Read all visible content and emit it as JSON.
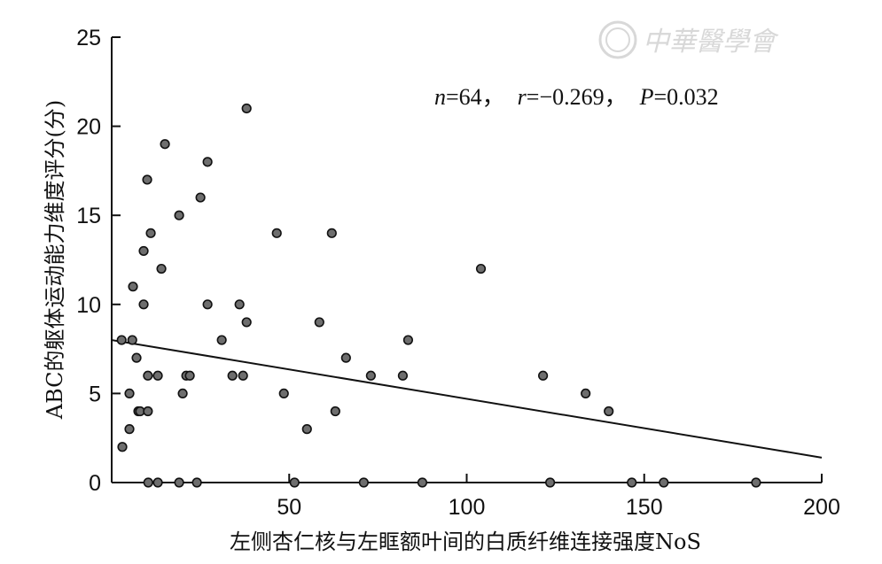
{
  "chart_data": {
    "type": "scatter",
    "xlabel": "左侧杏仁核与左眶额叶间的白质纤维连接强度NoS",
    "ylabel": "ABC的躯体运动能力维度评分(分)",
    "annotation": {
      "n_label": "n",
      "n_value": "=64，",
      "r_label": "r",
      "r_value": "=−0.269，",
      "p_label": "P",
      "p_value": "=0.032"
    },
    "xlim": [
      0,
      200
    ],
    "ylim": [
      0,
      25
    ],
    "x_ticks": [
      50,
      100,
      150,
      200
    ],
    "y_ticks": [
      0,
      5,
      10,
      15,
      20,
      25
    ],
    "x_tick_labels": [
      "50",
      "100",
      "150",
      "200"
    ],
    "y_tick_labels": [
      "0",
      "5",
      "10",
      "15",
      "20",
      "25"
    ],
    "regression_line": {
      "x": [
        0,
        200
      ],
      "y": [
        8.0,
        1.4
      ]
    },
    "points": [
      {
        "x": 2.8,
        "y": 8
      },
      {
        "x": 3.0,
        "y": 2
      },
      {
        "x": 5.0,
        "y": 5
      },
      {
        "x": 5.0,
        "y": 3
      },
      {
        "x": 5.8,
        "y": 8
      },
      {
        "x": 6.0,
        "y": 11
      },
      {
        "x": 7.0,
        "y": 7
      },
      {
        "x": 7.5,
        "y": 4
      },
      {
        "x": 8.0,
        "y": 4
      },
      {
        "x": 9.0,
        "y": 13
      },
      {
        "x": 9.0,
        "y": 10
      },
      {
        "x": 10.0,
        "y": 17
      },
      {
        "x": 10.2,
        "y": 6
      },
      {
        "x": 10.2,
        "y": 4
      },
      {
        "x": 11.0,
        "y": 14
      },
      {
        "x": 10.3,
        "y": 0
      },
      {
        "x": 13.0,
        "y": 6
      },
      {
        "x": 13.0,
        "y": 0
      },
      {
        "x": 14.0,
        "y": 12
      },
      {
        "x": 15.0,
        "y": 19
      },
      {
        "x": 19.0,
        "y": 15
      },
      {
        "x": 19.0,
        "y": 0
      },
      {
        "x": 20.0,
        "y": 5
      },
      {
        "x": 21.0,
        "y": 6
      },
      {
        "x": 22.0,
        "y": 6
      },
      {
        "x": 24.0,
        "y": 0
      },
      {
        "x": 25.0,
        "y": 16
      },
      {
        "x": 27.0,
        "y": 18
      },
      {
        "x": 27.0,
        "y": 10
      },
      {
        "x": 31.0,
        "y": 8
      },
      {
        "x": 34.0,
        "y": 6
      },
      {
        "x": 36.0,
        "y": 10
      },
      {
        "x": 37.0,
        "y": 6
      },
      {
        "x": 38.0,
        "y": 9
      },
      {
        "x": 38.0,
        "y": 21
      },
      {
        "x": 46.5,
        "y": 14
      },
      {
        "x": 48.5,
        "y": 5
      },
      {
        "x": 51.5,
        "y": 0
      },
      {
        "x": 55.0,
        "y": 3
      },
      {
        "x": 58.5,
        "y": 9
      },
      {
        "x": 62.0,
        "y": 14
      },
      {
        "x": 63.0,
        "y": 4
      },
      {
        "x": 66.0,
        "y": 7
      },
      {
        "x": 71.0,
        "y": 0
      },
      {
        "x": 73.0,
        "y": 6
      },
      {
        "x": 82.0,
        "y": 6
      },
      {
        "x": 83.5,
        "y": 8
      },
      {
        "x": 87.5,
        "y": 0
      },
      {
        "x": 104.0,
        "y": 12
      },
      {
        "x": 121.5,
        "y": 6
      },
      {
        "x": 123.5,
        "y": 0
      },
      {
        "x": 133.5,
        "y": 5
      },
      {
        "x": 140.0,
        "y": 4
      },
      {
        "x": 146.5,
        "y": 0
      },
      {
        "x": 155.5,
        "y": 0
      },
      {
        "x": 181.5,
        "y": 0
      }
    ]
  },
  "watermark": "中華醫學會"
}
